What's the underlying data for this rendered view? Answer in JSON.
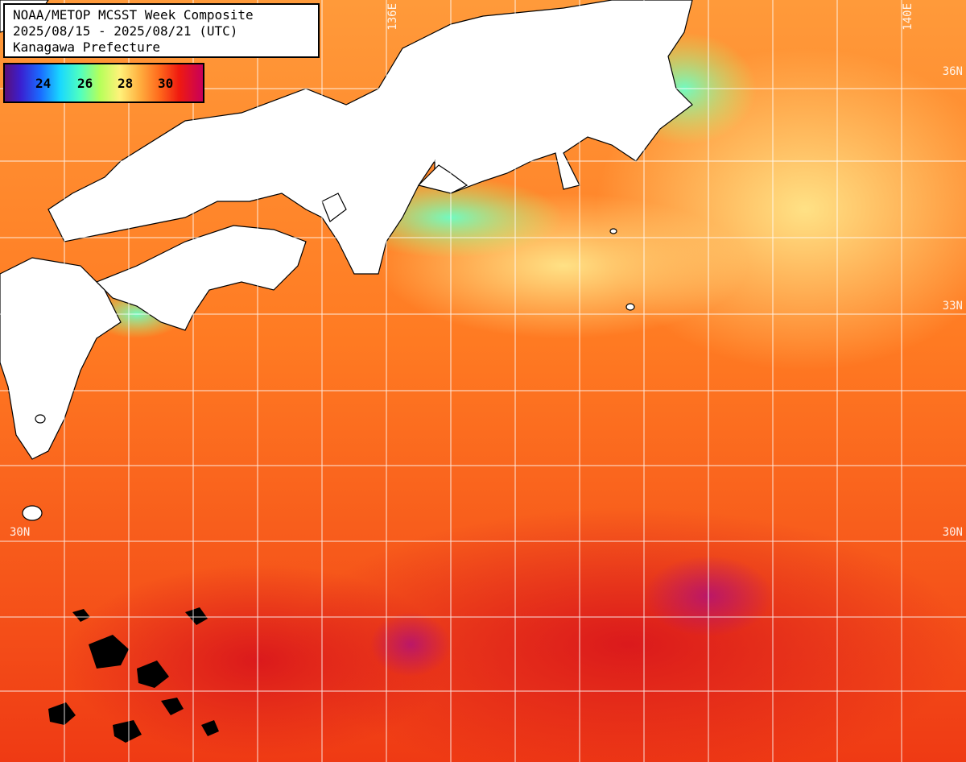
{
  "title": {
    "line1": "NOAA/METOP MCSST Week Composite",
    "line2": "2025/08/15 - 2025/08/21 (UTC)",
    "line3": "Kanagawa Prefecture"
  },
  "legend": {
    "ticks": [
      "24",
      "26",
      "28",
      "30"
    ],
    "colors": [
      "#5a0f7a",
      "#1a6cff",
      "#19d8ff",
      "#b6ff5a",
      "#fff27a",
      "#ff6a1c",
      "#ef1a10",
      "#c8005a"
    ]
  },
  "grid_labels": {
    "lat_33": "33N",
    "lat_30": "30N",
    "lat_36": "36N",
    "lon_136": "136E",
    "lon_140": "140E"
  },
  "colors": {
    "land": "#ffffff",
    "sea_warm": "#ff7a22",
    "sea_hot": "#e8281a",
    "sea_coastal": "#7fffb0",
    "sea_cool": "#ffe070",
    "grid": "#ffffff"
  }
}
